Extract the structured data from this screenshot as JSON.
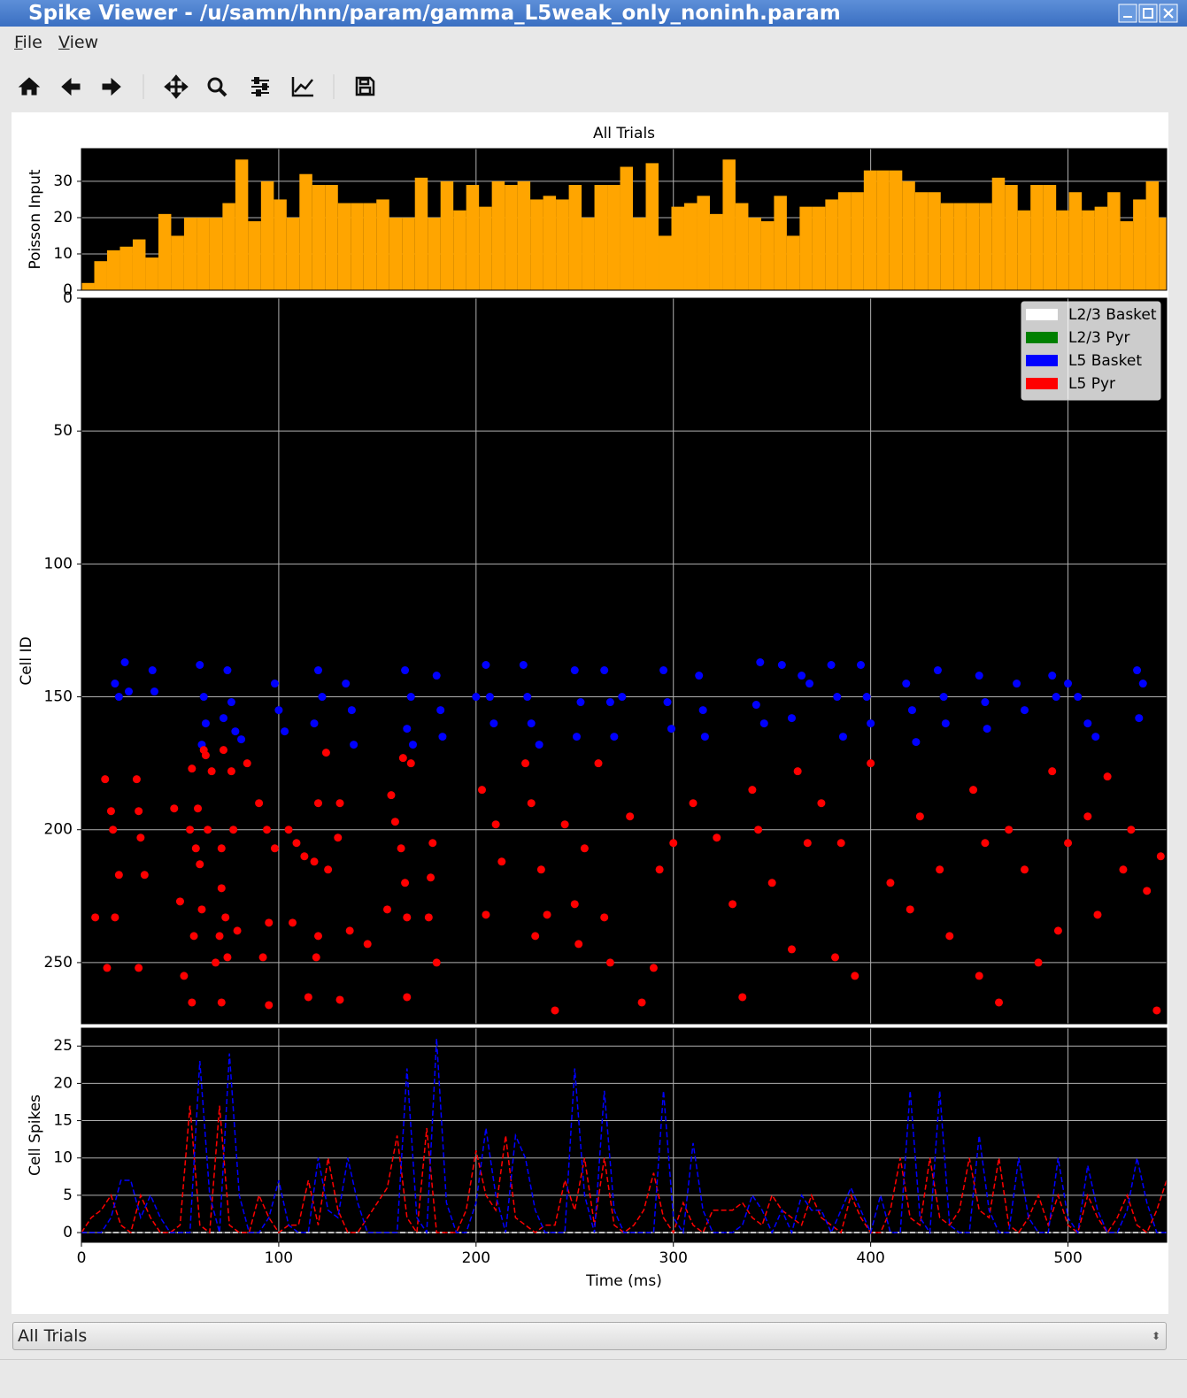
{
  "window": {
    "title": "Spike Viewer - /u/samn/hnn/param/gamma_L5weak_only_noninh.param"
  },
  "menu": [
    "File",
    "View"
  ],
  "figure": {
    "title": "All Trials"
  },
  "dropdown": {
    "value": "All Trials"
  },
  "chart_data": [
    {
      "type": "histogram",
      "ylabel": "Poisson Input",
      "color": "#ffa500",
      "facecolor": "#000000",
      "grid": true,
      "xlim": [
        0,
        550
      ],
      "ylim": [
        0,
        39
      ],
      "yticks": [
        0,
        10,
        20,
        30
      ],
      "bins": [
        0,
        6.5,
        13,
        19.5,
        26,
        32.5,
        39,
        45.5,
        52,
        58.5,
        65,
        71.5,
        78,
        84.5,
        91,
        97.5,
        104,
        110.5,
        117,
        123.5,
        130,
        136.5,
        143,
        149.5,
        156,
        162.5,
        169,
        175.5,
        182,
        188.5,
        195,
        201.5,
        208,
        214.5,
        221,
        227.5,
        234,
        240.5,
        247,
        253.5,
        260,
        266.5,
        273,
        279.5,
        286,
        292.5,
        299,
        305.5,
        312,
        318.5,
        325,
        331.5,
        338,
        344.5,
        351,
        357.5,
        364,
        370.5,
        377,
        383.5,
        390,
        396.5,
        403,
        409.5,
        416,
        422.5,
        429,
        435.5,
        442,
        448.5,
        455,
        461.5,
        468,
        474.5,
        481,
        487.5,
        494,
        500.5,
        507,
        513.5,
        520,
        526.5,
        533,
        539.5,
        546,
        552.5
      ],
      "values": [
        2,
        8,
        11,
        12,
        14,
        9,
        21,
        15,
        20,
        20,
        20,
        24,
        36,
        19,
        30,
        25,
        20,
        32,
        29,
        29,
        24,
        24,
        24,
        25,
        20,
        20,
        31,
        20,
        30,
        22,
        29,
        23,
        30,
        29,
        30,
        25,
        26,
        25,
        29,
        20,
        29,
        29,
        34,
        20,
        35,
        15,
        23,
        24,
        26,
        21,
        36,
        24,
        20,
        19,
        26,
        15,
        23,
        23,
        25,
        27,
        27,
        33,
        33,
        33,
        30,
        27,
        27,
        24,
        24,
        24,
        24,
        31,
        29,
        22,
        29,
        29,
        22,
        27,
        22,
        23,
        27,
        19,
        25,
        30,
        20
      ]
    },
    {
      "type": "scatter",
      "ylabel": "Cell ID",
      "facecolor": "#000000",
      "grid": true,
      "y_inverted": true,
      "legend": "upper right",
      "xlim": [
        0,
        550
      ],
      "ylim": [
        0,
        273
      ],
      "yticks": [
        0,
        50,
        100,
        150,
        200,
        250
      ],
      "series": [
        {
          "name": "L2/3 Basket",
          "color": "#ffffff",
          "x": [],
          "y": []
        },
        {
          "name": "L2/3 Pyr",
          "color": "#008000",
          "x": [],
          "y": []
        },
        {
          "name": "L5 Basket",
          "color": "#0000ff",
          "x": [
            17,
            19,
            22,
            24,
            36,
            37,
            60,
            62,
            63,
            61,
            74,
            76,
            78,
            72,
            81,
            98,
            100,
            103,
            120,
            122,
            118,
            134,
            137,
            138,
            164,
            167,
            165,
            168,
            180,
            182,
            183,
            205,
            207,
            209,
            200,
            224,
            226,
            228,
            232,
            250,
            253,
            251,
            265,
            268,
            270,
            274,
            295,
            297,
            299,
            313,
            315,
            316,
            342,
            346,
            344,
            355,
            360,
            365,
            369,
            380,
            383,
            386,
            395,
            398,
            400,
            418,
            421,
            423,
            434,
            437,
            438,
            455,
            458,
            459,
            474,
            478,
            492,
            494,
            500,
            505,
            510,
            514,
            535,
            536,
            538
          ],
          "y": [
            145,
            150,
            137,
            148,
            140,
            148,
            138,
            150,
            160,
            168,
            140,
            152,
            163,
            158,
            166,
            145,
            155,
            163,
            140,
            150,
            160,
            145,
            155,
            168,
            140,
            150,
            162,
            168,
            142,
            155,
            165,
            138,
            150,
            160,
            150,
            138,
            150,
            160,
            168,
            140,
            152,
            165,
            140,
            152,
            165,
            150,
            140,
            152,
            162,
            142,
            155,
            165,
            153,
            160,
            137,
            138,
            158,
            142,
            145,
            138,
            150,
            165,
            138,
            150,
            160,
            145,
            155,
            167,
            140,
            150,
            160,
            142,
            152,
            162,
            145,
            155,
            142,
            150,
            145,
            150,
            160,
            165,
            140,
            158,
            145
          ]
        },
        {
          "name": "L5 Pyr",
          "color": "#ff0000",
          "x": [
            7,
            12,
            13,
            15,
            16,
            17,
            19,
            28,
            29,
            29,
            30,
            32,
            47,
            50,
            52,
            55,
            56,
            56,
            57,
            58,
            59,
            60,
            61,
            62,
            63,
            64,
            66,
            68,
            70,
            71,
            71,
            71,
            72,
            73,
            74,
            76,
            77,
            79,
            84,
            90,
            92,
            94,
            95,
            95,
            98,
            105,
            107,
            109,
            113,
            115,
            118,
            119,
            120,
            120,
            124,
            125,
            130,
            131,
            131,
            136,
            145,
            155,
            157,
            159,
            162,
            163,
            164,
            165,
            165,
            167,
            176,
            177,
            178,
            180,
            203,
            205,
            210,
            213,
            225,
            228,
            230,
            233,
            236,
            240,
            245,
            250,
            252,
            255,
            262,
            265,
            268,
            278,
            284,
            290,
            293,
            300,
            310,
            322,
            330,
            335,
            340,
            343,
            350,
            360,
            363,
            368,
            375,
            382,
            385,
            392,
            400,
            410,
            420,
            425,
            435,
            440,
            452,
            455,
            458,
            465,
            470,
            478,
            485,
            492,
            495,
            500,
            510,
            515,
            520,
            528,
            532,
            540,
            545,
            547
          ],
          "y": [
            233,
            181,
            252,
            193,
            200,
            233,
            217,
            181,
            193,
            252,
            203,
            217,
            192,
            227,
            255,
            200,
            177,
            265,
            240,
            207,
            192,
            213,
            230,
            170,
            172,
            200,
            178,
            250,
            240,
            207,
            222,
            265,
            170,
            233,
            248,
            178,
            200,
            238,
            175,
            190,
            248,
            200,
            235,
            266,
            207,
            200,
            235,
            205,
            210,
            263,
            212,
            248,
            240,
            190,
            171,
            215,
            203,
            190,
            264,
            238,
            243,
            230,
            187,
            197,
            207,
            173,
            220,
            233,
            263,
            175,
            233,
            218,
            205,
            250,
            185,
            232,
            198,
            212,
            175,
            190,
            240,
            215,
            232,
            268,
            198,
            228,
            243,
            207,
            175,
            233,
            250,
            195,
            265,
            252,
            215,
            205,
            190,
            203,
            228,
            263,
            185,
            200,
            220,
            245,
            178,
            205,
            190,
            248,
            205,
            255,
            175,
            220,
            230,
            195,
            215,
            240,
            185,
            255,
            205,
            265,
            200,
            215,
            250,
            178,
            238,
            205,
            195,
            232,
            180,
            215,
            200,
            223,
            268,
            210
          ]
        }
      ]
    },
    {
      "type": "line",
      "ylabel": "Cell Spikes",
      "xlabel": "Time (ms)",
      "facecolor": "#000000",
      "grid": true,
      "dashed": true,
      "xlim": [
        0,
        550
      ],
      "xticks": [
        0,
        100,
        200,
        300,
        400,
        500
      ],
      "ylim": [
        -1.3,
        27.4
      ],
      "yticks": [
        0,
        5,
        10,
        15,
        20,
        25
      ],
      "x": [
        0,
        5,
        10,
        15,
        20,
        25,
        30,
        35,
        40,
        45,
        50,
        55,
        60,
        65,
        70,
        75,
        80,
        85,
        90,
        95,
        100,
        105,
        110,
        115,
        120,
        125,
        130,
        135,
        140,
        145,
        150,
        155,
        160,
        165,
        170,
        175,
        180,
        185,
        190,
        195,
        200,
        205,
        210,
        215,
        220,
        225,
        230,
        235,
        240,
        245,
        250,
        255,
        260,
        265,
        270,
        275,
        280,
        285,
        290,
        295,
        300,
        305,
        310,
        315,
        320,
        325,
        330,
        335,
        340,
        345,
        350,
        355,
        360,
        365,
        370,
        375,
        380,
        385,
        390,
        395,
        400,
        405,
        410,
        415,
        420,
        425,
        430,
        435,
        440,
        445,
        450,
        455,
        460,
        465,
        470,
        475,
        480,
        485,
        490,
        495,
        500,
        505,
        510,
        515,
        520,
        525,
        530,
        535,
        540,
        545,
        550
      ],
      "series": [
        {
          "name": "L2/3 Basket",
          "color": "#ffffff",
          "values": [
            0,
            0,
            0,
            0,
            0,
            0,
            0,
            0,
            0,
            0,
            0,
            0,
            0,
            0,
            0,
            0,
            0,
            0,
            0,
            0,
            0,
            0,
            0,
            0,
            0,
            0,
            0,
            0,
            0,
            0,
            0,
            0,
            0,
            0,
            0,
            0,
            0,
            0,
            0,
            0,
            0,
            0,
            0,
            0,
            0,
            0,
            0,
            0,
            0,
            0,
            0,
            0,
            0,
            0,
            0,
            0,
            0,
            0,
            0,
            0,
            0,
            0,
            0,
            0,
            0,
            0,
            0,
            0,
            0,
            0,
            0,
            0,
            0,
            0,
            0,
            0,
            0,
            0,
            0,
            0,
            0,
            0,
            0,
            0,
            0,
            0,
            0,
            0,
            0,
            0,
            0,
            0,
            0,
            0,
            0,
            0,
            0,
            0,
            0,
            0,
            0,
            0,
            0,
            0,
            0,
            0,
            0,
            0,
            0,
            0,
            0
          ]
        },
        {
          "name": "L5 Pyr",
          "color": "#ff0000",
          "values": [
            0,
            2,
            3,
            5,
            1,
            0,
            5,
            2,
            0,
            0,
            1,
            17,
            1,
            0,
            17,
            1,
            0,
            0,
            5,
            2,
            0,
            1,
            1,
            7,
            1,
            10,
            3,
            0,
            0,
            2,
            4,
            6,
            13,
            2,
            0,
            14,
            0,
            0,
            0,
            3,
            11,
            5,
            3,
            13,
            2,
            1,
            0,
            1,
            1,
            7,
            3,
            10,
            1,
            10,
            1,
            0,
            1,
            3,
            8,
            2,
            0,
            4,
            1,
            0,
            3,
            3,
            3,
            4,
            2,
            1,
            5,
            3,
            2,
            1,
            5,
            2,
            1,
            0,
            5,
            2,
            0,
            0,
            3,
            10,
            2,
            1,
            10,
            2,
            1,
            3,
            10,
            3,
            2,
            10,
            1,
            0,
            2,
            5,
            1,
            5,
            1,
            0,
            5,
            2,
            0,
            2,
            5,
            1,
            0,
            3,
            7
          ]
        },
        {
          "name": "L5 Basket",
          "color": "#0000ff",
          "values": [
            0,
            0,
            0,
            2,
            7,
            7,
            2,
            5,
            2,
            0,
            0,
            0,
            23,
            5,
            0,
            24,
            5,
            0,
            0,
            2,
            7,
            1,
            0,
            0,
            10,
            3,
            2,
            10,
            4,
            0,
            0,
            0,
            0,
            22,
            2,
            0,
            26,
            4,
            0,
            0,
            4,
            14,
            5,
            0,
            13,
            10,
            3,
            0,
            0,
            0,
            22,
            5,
            0,
            19,
            3,
            0,
            0,
            0,
            0,
            19,
            2,
            0,
            12,
            3,
            0,
            0,
            0,
            1,
            5,
            3,
            0,
            3,
            0,
            5,
            3,
            3,
            0,
            3,
            6,
            3,
            0,
            5,
            0,
            0,
            19,
            2,
            0,
            19,
            1,
            0,
            0,
            13,
            3,
            0,
            0,
            10,
            2,
            0,
            0,
            10,
            2,
            0,
            9,
            3,
            0,
            0,
            3,
            10,
            4,
            0,
            0
          ]
        }
      ]
    }
  ]
}
